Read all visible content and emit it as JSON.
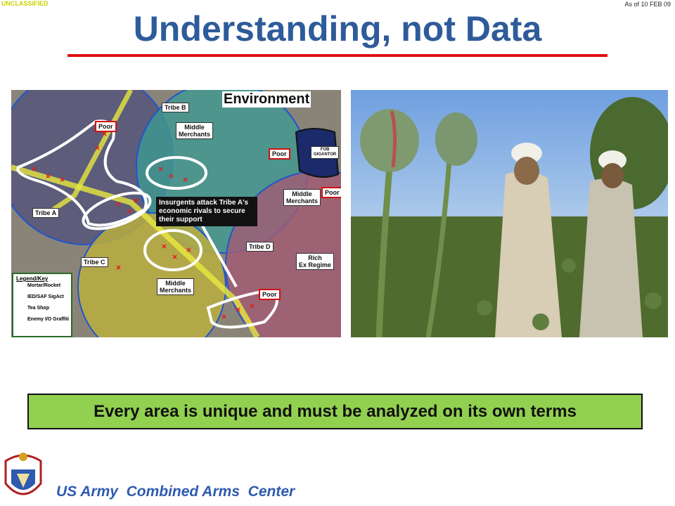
{
  "header": {
    "classification": "UNCLASSIFIED",
    "date": "As of 10 FEB  09",
    "title": "Understanding, not Data"
  },
  "map": {
    "title": "Environment",
    "labels": [
      "Tribe B",
      "Poor",
      "Middle\nMerchants",
      "Poor",
      "FOB\nGIGANTOR",
      "Poor",
      "Middle\nMerchants",
      "Tribe A",
      "Tribe D",
      "Tribe C",
      "Rich\nEx Regime",
      "Middle\nMerchants",
      "Poor"
    ],
    "callout": "Insurgents attack Tribe A's economic rivals to secure their support",
    "legend": {
      "title": "Legend/Key",
      "items": [
        "Mortar/Rocket",
        "IED/SAF SigAct",
        "Tea Shop",
        "Enemy I/O Graffiti"
      ]
    }
  },
  "banner": "Every area is unique and must be analyzed on its own terms",
  "footer": {
    "organization": "US Army  Combined Arms  Center"
  }
}
